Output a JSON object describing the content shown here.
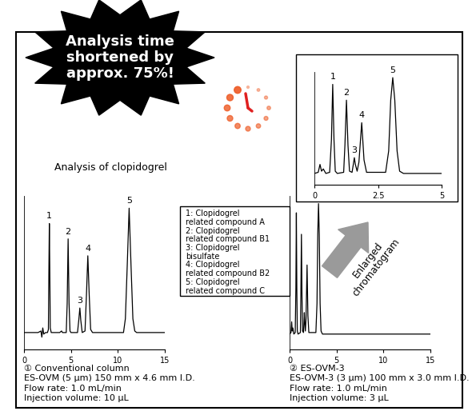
{
  "banner": "Analysis time\nshortened by\napprox. 75%!",
  "heading": "Analysis of clopidogrel",
  "arrow_label": "Enlarged\nchromatogram",
  "key": [
    "1: Clopidogrel\nrelated compound A",
    "2: Clopidogrel\nrelated compound B1",
    "3: Clopidogrel\nbisulfate",
    "4: Clopidogrel\nrelated compound B2",
    "5: Clopidogrel\nrelated compound C"
  ],
  "chart_data": [
    {
      "type": "line",
      "tick_labels": "x",
      "caption": [
        "① Conventional column",
        "ES-OVM (5 μm) 150 mm x 4.6 mm I.D.",
        "Flow rate: 1.0 mL/min",
        "Injection volume: 10 μL"
      ],
      "x": [
        0,
        1.5,
        1.8,
        1.9,
        2.0,
        2.1,
        2.3,
        2.5,
        2.6,
        2.65,
        2.7,
        2.75,
        2.8,
        2.9,
        3.8,
        4.0,
        4.1,
        4.5,
        4.6,
        4.7,
        4.8,
        4.9,
        5.0,
        5.7,
        5.85,
        5.95,
        6.05,
        6.2,
        6.5,
        6.65,
        6.8,
        6.95,
        7.1,
        7.3,
        10.6,
        10.8,
        11.0,
        11.2,
        11.4,
        11.6,
        11.8,
        12.0,
        15
      ],
      "series": [
        {
          "color": "#000000",
          "values": [
            11,
            11,
            12,
            8,
            14,
            10,
            11,
            11,
            13,
            50,
            82,
            50,
            14,
            11,
            11,
            12,
            11,
            11,
            30,
            72,
            30,
            12,
            11,
            11,
            20,
            27,
            19,
            11,
            12,
            35,
            61,
            35,
            13,
            11,
            11,
            20,
            55,
            92,
            55,
            20,
            12,
            11,
            11
          ]
        }
      ],
      "annotations": [
        {
          "text": "1",
          "x": 2.7,
          "y": 82
        },
        {
          "text": "2",
          "x": 4.7,
          "y": 72
        },
        {
          "text": "3",
          "x": 5.95,
          "y": 27
        },
        {
          "text": "4",
          "x": 6.8,
          "y": 61
        },
        {
          "text": "5",
          "x": 11.2,
          "y": 92
        }
      ],
      "xlim": [
        0,
        15
      ],
      "xticks": [
        0,
        5,
        10,
        15
      ],
      "ylim": [
        0,
        100
      ]
    },
    {
      "type": "line",
      "tick_labels": "x",
      "caption": [
        "② ES-OVM-3",
        "ES-OVM-3 (3 μm) 100 mm x 3.0 mm I.D.",
        "Flow rate: 1.0 mL/min",
        "Injection volume: 3 μL"
      ],
      "x": [
        0,
        0.15,
        0.22,
        0.28,
        0.35,
        0.45,
        0.6,
        0.67,
        0.72,
        0.77,
        0.82,
        0.9,
        1.15,
        1.2,
        1.26,
        1.32,
        1.38,
        1.48,
        1.53,
        1.57,
        1.61,
        1.68,
        1.75,
        1.86,
        1.95,
        2.05,
        2.8,
        2.92,
        3.0,
        3.08,
        3.16,
        3.25,
        3.35,
        3.5,
        15
      ],
      "series": [
        {
          "color": "#000000",
          "values": [
            10,
            11,
            18,
            12,
            14,
            10,
            11,
            40,
            89,
            40,
            12,
            10,
            11,
            35,
            75,
            35,
            12,
            11,
            18,
            24,
            18,
            12,
            20,
            55,
            22,
            11,
            11,
            30,
            75,
            95,
            75,
            30,
            12,
            10,
            10
          ]
        }
      ],
      "xlim": [
        0,
        15
      ],
      "xticks": [
        0,
        5,
        10,
        15
      ],
      "ylim": [
        0,
        100
      ]
    },
    {
      "type": "line",
      "tick_labels": "x",
      "x": [
        0,
        0.15,
        0.22,
        0.28,
        0.35,
        0.45,
        0.6,
        0.67,
        0.72,
        0.77,
        0.82,
        0.9,
        1.15,
        1.2,
        1.26,
        1.32,
        1.38,
        1.48,
        1.53,
        1.57,
        1.61,
        1.68,
        1.75,
        1.86,
        1.95,
        2.05,
        2.8,
        2.92,
        3.0,
        3.08,
        3.16,
        3.25,
        3.35,
        3.5,
        15
      ],
      "series": [
        {
          "color": "#000000",
          "values": [
            10,
            11,
            18,
            12,
            14,
            10,
            11,
            40,
            89,
            40,
            12,
            10,
            11,
            35,
            75,
            35,
            12,
            11,
            18,
            24,
            18,
            12,
            20,
            55,
            22,
            11,
            11,
            30,
            75,
            95,
            75,
            30,
            12,
            10,
            10
          ]
        }
      ],
      "annotations": [
        {
          "text": "1",
          "x": 0.72,
          "y": 89
        },
        {
          "text": "2",
          "x": 1.26,
          "y": 75
        },
        {
          "text": "3",
          "x": 1.57,
          "y": 24
        },
        {
          "text": "4",
          "x": 1.86,
          "y": 55
        },
        {
          "text": "5",
          "x": 3.08,
          "y": 95
        }
      ],
      "xlim": [
        0,
        5
      ],
      "xticks": [
        0,
        2.5,
        5
      ],
      "ylim": [
        0,
        100
      ]
    }
  ]
}
